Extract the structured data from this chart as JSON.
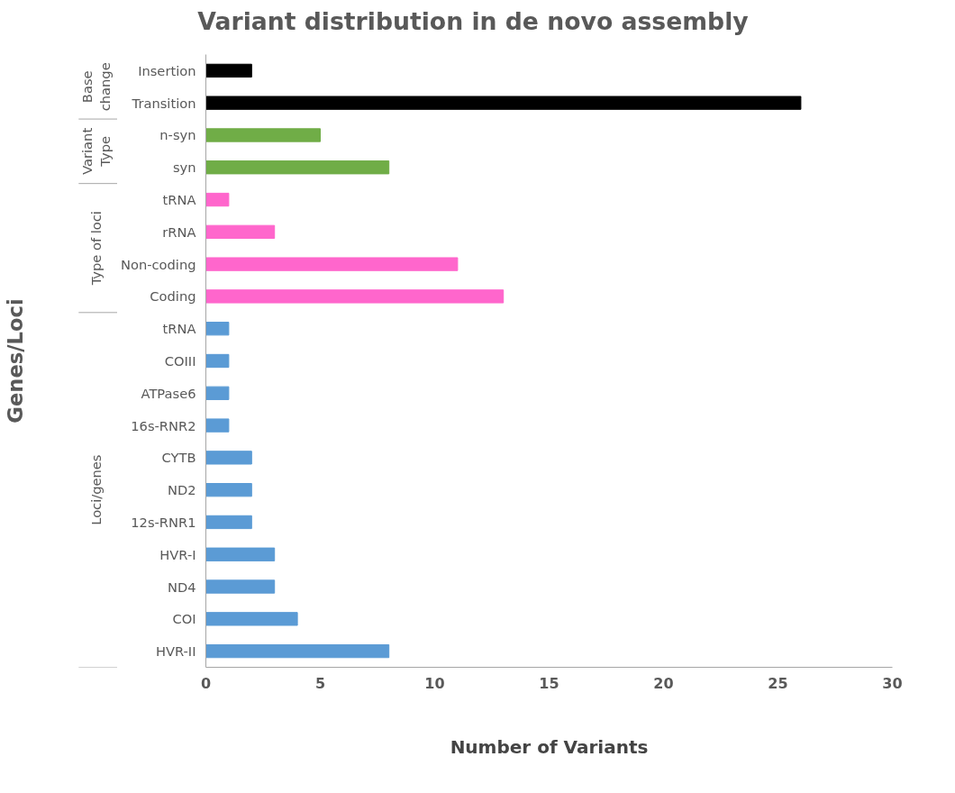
{
  "chart_data": {
    "type": "bar",
    "orientation": "horizontal",
    "title": "Variant distribution in de novo assembly",
    "xlabel": "Number of Variants",
    "ylabel": "Genes/Loci",
    "categories": [
      "Insertion",
      "Transition",
      "n-syn",
      "syn",
      "tRNA",
      "rRNA",
      "Non-coding",
      "Coding",
      "tRNA",
      "COIII",
      "ATPase6",
      "16s-RNR2",
      "CYTB",
      "ND2",
      "12s-RNR1",
      "HVR-I",
      "ND4",
      "COI",
      "HVR-II"
    ],
    "values": [
      2,
      26,
      5,
      8,
      1,
      3,
      11,
      13,
      1,
      1,
      1,
      1,
      2,
      2,
      2,
      3,
      3,
      4,
      8
    ],
    "colors": [
      "#000000",
      "#000000",
      "#70ad47",
      "#70ad47",
      "#ff66cc",
      "#ff66cc",
      "#ff66cc",
      "#ff66cc",
      "#5b9bd5",
      "#5b9bd5",
      "#5b9bd5",
      "#5b9bd5",
      "#5b9bd5",
      "#5b9bd5",
      "#5b9bd5",
      "#5b9bd5",
      "#5b9bd5",
      "#5b9bd5",
      "#5b9bd5"
    ],
    "xlim": [
      0,
      30
    ],
    "xticks": [
      0,
      5,
      10,
      15,
      20,
      25,
      30
    ],
    "grid": false,
    "annotations": [
      "Base change",
      "Variant Type",
      "Type of loci",
      "Loci/genes"
    ]
  }
}
